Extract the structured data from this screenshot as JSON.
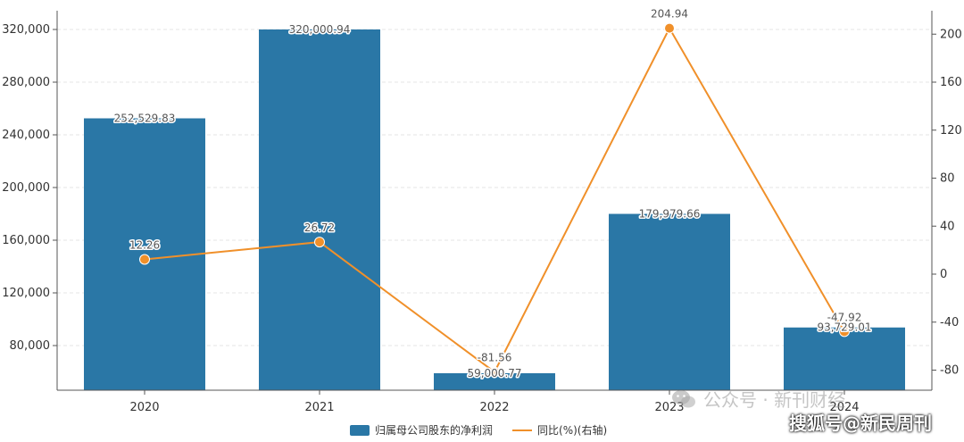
{
  "chart_data": {
    "type": "bar",
    "categories": [
      "2020",
      "2021",
      "2022",
      "2023",
      "2024"
    ],
    "series": [
      {
        "name": "归属母公司股东的净利润",
        "type": "bar",
        "axis": "left",
        "color": "#2a77a6",
        "values": [
          252529.83,
          320000.94,
          59000.77,
          179979.66,
          93729.01
        ],
        "labels": [
          "252,529.83",
          "320,000.94",
          "59,000.77",
          "179,979.66",
          "93,729.01"
        ]
      },
      {
        "name": "同比(%)(右轴)",
        "type": "line",
        "axis": "right",
        "color": "#f0902a",
        "values": [
          12.26,
          26.72,
          -81.56,
          204.94,
          -47.92
        ],
        "labels": [
          "12.26",
          "26.72",
          "-81.56",
          "204.94",
          "-47.92"
        ]
      }
    ],
    "y_left": {
      "ticks": [
        80000,
        120000,
        160000,
        200000,
        240000,
        280000,
        320000
      ],
      "tick_labels": [
        "80,000",
        "120,000",
        "160,000",
        "200,000",
        "240,000",
        "280,000",
        "320,000"
      ]
    },
    "y_right": {
      "ticks": [
        -80,
        -40,
        0,
        40,
        80,
        120,
        160,
        200
      ],
      "tick_labels": [
        "-80",
        "-40",
        "0",
        "40",
        "80",
        "120",
        "160",
        "200"
      ]
    },
    "grid": true,
    "legend_position": "bottom-center"
  },
  "legend": {
    "bar_label": "归属母公司股东的净利润",
    "line_label": "同比(%)(右轴)"
  },
  "watermarks": {
    "wechat": "公众号 · 新刊财经",
    "source": "搜狐号@新民周刊"
  }
}
